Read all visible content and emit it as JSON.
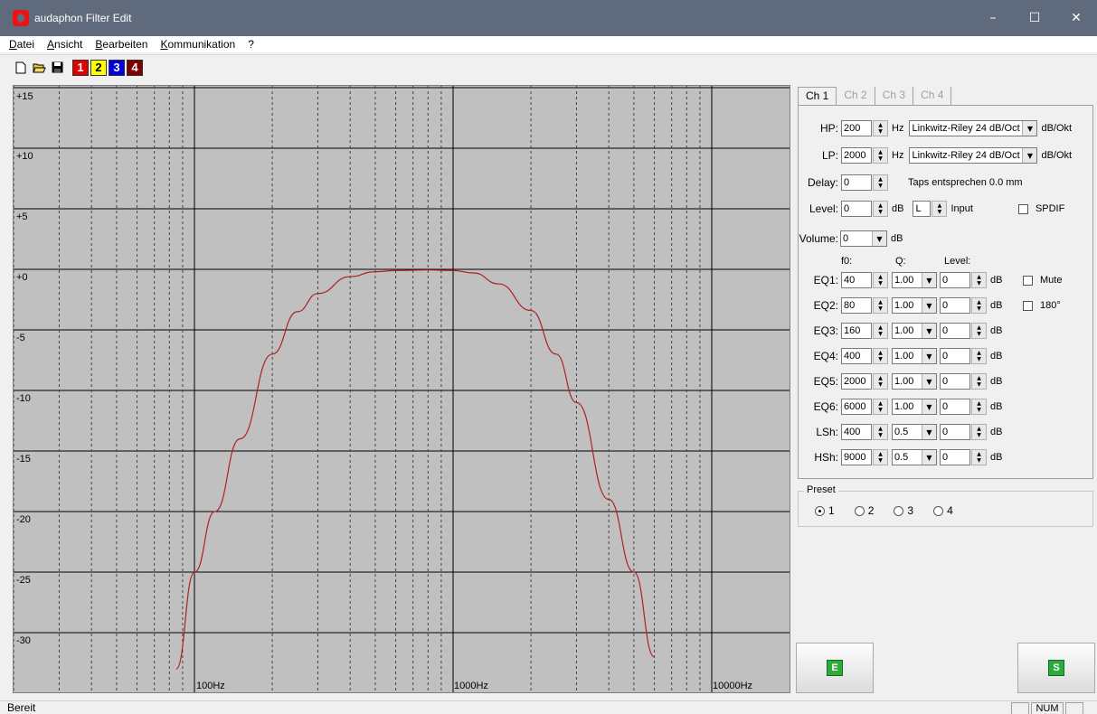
{
  "window": {
    "title": "audaphon Filter Edit",
    "minimize": "–",
    "maximize": "☐",
    "close": "✕"
  },
  "menu": [
    "Datei",
    "Ansicht",
    "Bearbeiten",
    "Kommunikation",
    "?"
  ],
  "toolbar": {
    "file_icons": [
      "new-file-icon",
      "open-folder-icon",
      "save-disk-icon"
    ],
    "channels": [
      {
        "label": "1",
        "bg": "#e00000",
        "fg": "#ffffff"
      },
      {
        "label": "2",
        "bg": "#ffff00",
        "fg": "#000000"
      },
      {
        "label": "3",
        "bg": "#0000e0",
        "fg": "#ffffff"
      },
      {
        "label": "4",
        "bg": "#800000",
        "fg": "#ffffff"
      }
    ]
  },
  "graph": {
    "db_labels": [
      "+15",
      "+10",
      "+5",
      "+0",
      "-5",
      "-10",
      "-15",
      "-20",
      "-25",
      "-30"
    ],
    "hz_labels": [
      "100Hz",
      "1000Hz",
      "10000Hz"
    ],
    "curve_color": "#b02020",
    "bg_color": "#c0c0c0"
  },
  "chart_data": {
    "type": "line",
    "title": "",
    "xlabel": "",
    "ylabel": "",
    "x_scale": "log",
    "xlim": [
      30,
      20000
    ],
    "ylim": [
      -33,
      16
    ],
    "series": [
      {
        "x": [
          85,
          100,
          120,
          150,
          200,
          250,
          300,
          400,
          500,
          600,
          800,
          1000,
          1200,
          1500,
          2000,
          2500,
          3000,
          4000,
          5000,
          6000
        ],
        "y": [
          -33,
          -25,
          -20,
          -14,
          -7,
          -3.5,
          -2,
          -0.6,
          -0.2,
          -0.1,
          -0.05,
          -0.1,
          -0.3,
          -1.2,
          -3.4,
          -7,
          -11,
          -19,
          -25,
          -32
        ]
      }
    ]
  },
  "tabs": [
    "Ch 1",
    "Ch 2",
    "Ch 3",
    "Ch 4"
  ],
  "settings": {
    "hp": {
      "label": "HP:",
      "value": "200",
      "unit": "Hz",
      "type": "Linkwitz-Riley 24 dB/Oct",
      "type_unit": "dB/Okt"
    },
    "lp": {
      "label": "LP:",
      "value": "2000",
      "unit": "Hz",
      "type": "Linkwitz-Riley 24 dB/Oct",
      "type_unit": "dB/Okt"
    },
    "delay": {
      "label": "Delay:",
      "value": "0",
      "note": "Taps entsprechen 0.0 mm"
    },
    "level": {
      "label": "Level:",
      "value": "0",
      "unit": "dB",
      "input_value": "L",
      "input_label": "Input",
      "spdif": "SPDIF"
    },
    "volume": {
      "label": "Volume:",
      "value": "0",
      "unit": "dB"
    },
    "headers": {
      "f0": "f0:",
      "q": "Q:",
      "level": "Level:"
    },
    "eq": [
      {
        "label": "EQ1:",
        "f0": "40",
        "q": "1.00",
        "level": "0"
      },
      {
        "label": "EQ2:",
        "f0": "80",
        "q": "1.00",
        "level": "0"
      },
      {
        "label": "EQ3:",
        "f0": "160",
        "q": "1.00",
        "level": "0"
      },
      {
        "label": "EQ4:",
        "f0": "400",
        "q": "1.00",
        "level": "0"
      },
      {
        "label": "EQ5:",
        "f0": "2000",
        "q": "1.00",
        "level": "0"
      },
      {
        "label": "EQ6:",
        "f0": "6000",
        "q": "1.00",
        "level": "0"
      },
      {
        "label": "LSh:",
        "f0": "400",
        "q": "0.5",
        "level": "0"
      },
      {
        "label": "HSh:",
        "f0": "9000",
        "q": "0.5",
        "level": "0"
      }
    ],
    "db_unit": "dB",
    "mute": "Mute",
    "phase": "180°"
  },
  "preset": {
    "title": "Preset",
    "options": [
      "1",
      "2",
      "3",
      "4"
    ],
    "selected": "1"
  },
  "buttons": {
    "e": "E",
    "s": "S"
  },
  "status": {
    "text": "Bereit",
    "num": "NUM"
  }
}
